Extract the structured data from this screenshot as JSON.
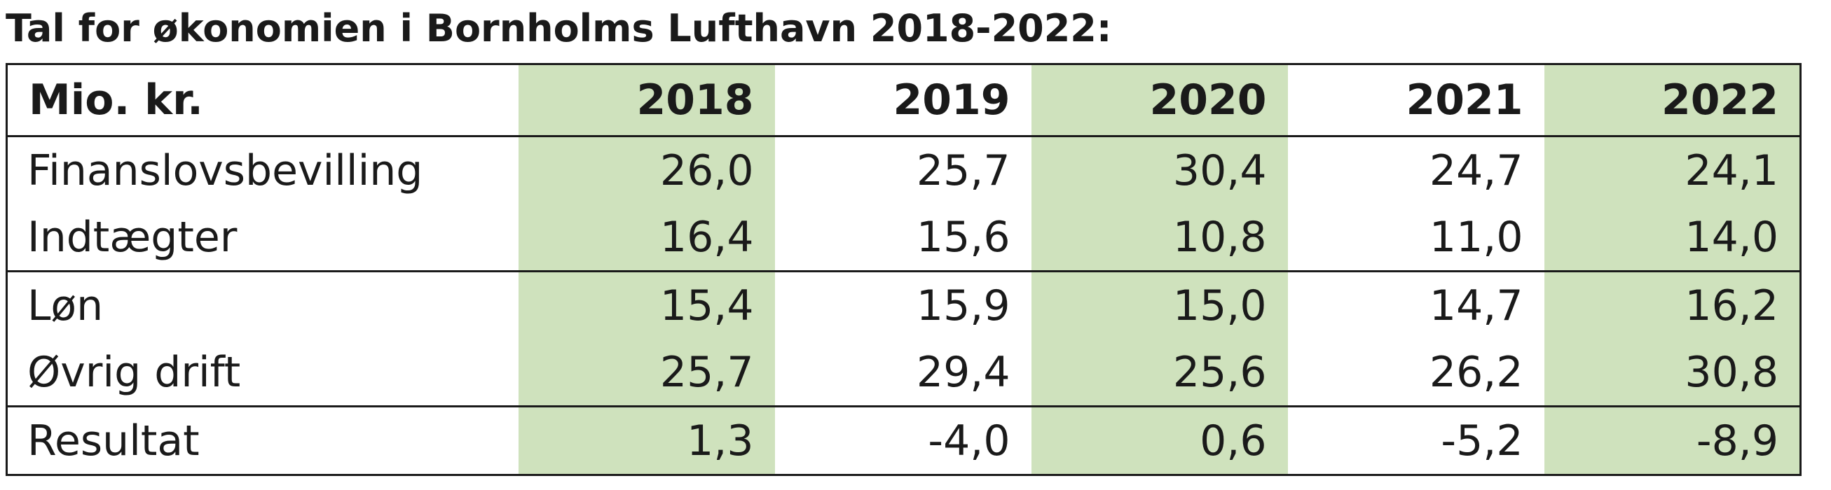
{
  "title": "Tal for økonomien i Bornholms Lufthavn 2018-2022:",
  "table": {
    "corner_label": "Mio. kr.",
    "years": [
      "2018",
      "2019",
      "2020",
      "2021",
      "2022"
    ],
    "rows": [
      {
        "label": "Finanslovsbevilling",
        "values": [
          "26,0",
          "25,7",
          "30,4",
          "24,7",
          "24,1"
        ]
      },
      {
        "label": "Indtægter",
        "values": [
          "16,4",
          "15,6",
          "10,8",
          "11,0",
          "14,0"
        ]
      },
      {
        "label": "Løn",
        "values": [
          "15,4",
          "15,9",
          "15,0",
          "14,7",
          "16,2"
        ]
      },
      {
        "label": "Øvrig drift",
        "values": [
          "25,7",
          "29,4",
          "25,6",
          "26,2",
          "30,8"
        ]
      },
      {
        "label": "Resultat",
        "values": [
          "1,3",
          "-4,0",
          "0,6",
          "-5,2",
          "-8,9"
        ]
      }
    ],
    "shaded_columns": [
      "2018",
      "2020",
      "2022"
    ],
    "shade_color": "#cfe2bd"
  }
}
